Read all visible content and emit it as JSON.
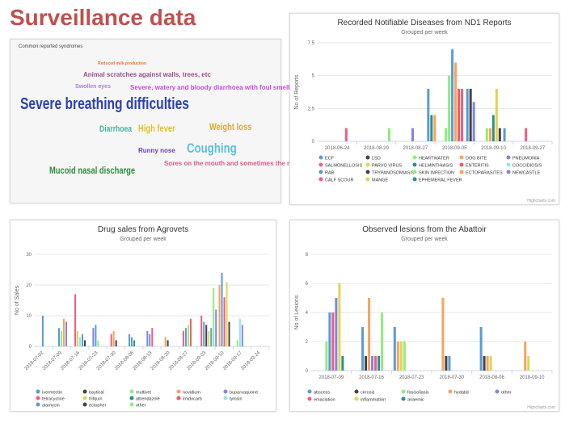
{
  "slide": {
    "title": "Surveillance data"
  },
  "wordcloud": {
    "title": "Common reported syndromes",
    "words": [
      {
        "text": "Reduced milk production",
        "size": 5,
        "color": "#e07b39"
      },
      {
        "text": "Animal scratches against walls, trees, etc",
        "size": 8,
        "color": "#9a4a8a"
      },
      {
        "text": "Swollen eyes",
        "size": 7,
        "color": "#b27bd0"
      },
      {
        "text": "Severe, watery and bloody diarrhoea with foul smell",
        "size": 8,
        "color": "#c44ae0"
      },
      {
        "text": "Severe breathing difficulties",
        "size": 20,
        "color": "#2a3fb5"
      },
      {
        "text": "Diarrhoea",
        "size": 11,
        "color": "#43b7a0"
      },
      {
        "text": "High fever",
        "size": 12,
        "color": "#e0c12a"
      },
      {
        "text": "Weight loss",
        "size": 12,
        "color": "#e0a82a"
      },
      {
        "text": "Runny nose",
        "size": 8,
        "color": "#6a3fb0"
      },
      {
        "text": "Coughing",
        "size": 17,
        "color": "#5bc0de"
      },
      {
        "text": "Sores on the mouth and sometimes the nose",
        "size": 8,
        "color": "#e05a8a"
      },
      {
        "text": "Mucoid nasal discharge",
        "size": 12,
        "color": "#2e8b3a"
      }
    ]
  },
  "charts": {
    "diseases": {
      "title": "Recorded Notifiable Diseases from ND1 Reports",
      "subtitle": "Grouped per week",
      "credit": "Highcharts.com",
      "chart_data": {
        "type": "bar",
        "title": "Recorded Notifiable Diseases from ND1 Reports",
        "ylabel": "No of Reports",
        "ylim": [
          0,
          7.5
        ],
        "yticks": [
          "0",
          "2.5",
          "5",
          "7.5"
        ],
        "xticks": [
          "2018-06-24",
          "2018-08-20",
          "2018-08-27",
          "2018-09-05",
          "2018-09-10",
          "2018-09-27"
        ],
        "groups": [
          {
            "at": 0.5,
            "bars": [
              {
                "name": "CALF SCOUR",
                "value": 1
              }
            ]
          },
          {
            "at": 1.6,
            "bars": [
              {
                "name": "HEARTWATER",
                "value": 1
              }
            ]
          },
          {
            "at": 2.2,
            "bars": [
              {
                "name": "NEWCASTLE",
                "value": 1
              }
            ]
          },
          {
            "at": 2.6,
            "bars": [
              {
                "name": "ECF",
                "value": 4
              },
              {
                "name": "EPHEMERAL FEVER",
                "value": 2
              },
              {
                "name": "DOG BITE",
                "value": 2
              }
            ]
          },
          {
            "at": 3.05,
            "bars": [
              {
                "name": "HEARTWATER",
                "value": 1
              },
              {
                "name": "SKIN INFECTION",
                "value": 5
              },
              {
                "name": "ECF",
                "value": 7
              },
              {
                "name": "DOG BITE",
                "value": 6
              },
              {
                "name": "ENTERITIS",
                "value": 4
              },
              {
                "name": "SALMONELLOSIS",
                "value": 4
              }
            ]
          },
          {
            "at": 3.6,
            "bars": [
              {
                "name": "ECF",
                "value": 4
              },
              {
                "name": "LSD",
                "value": 4
              },
              {
                "name": "NEWCASTLE",
                "value": 3
              }
            ]
          },
          {
            "at": 4.1,
            "bars": [
              {
                "name": "HEARTWATER",
                "value": 1
              },
              {
                "name": "DOG BITE",
                "value": 1
              },
              {
                "name": "HELMINTHIASIS",
                "value": 2
              },
              {
                "name": "MANGE",
                "value": 4
              },
              {
                "name": "LSD",
                "value": 1
              }
            ]
          },
          {
            "at": 4.55,
            "bars": [
              {
                "name": "ECF",
                "value": 1
              }
            ]
          },
          {
            "at": 5.1,
            "bars": [
              {
                "name": "SALMONELLOSIS",
                "value": 1
              }
            ]
          }
        ],
        "legend": [
          {
            "name": "ECF",
            "color": "#5b9bd5"
          },
          {
            "name": "LSD",
            "color": "#434348"
          },
          {
            "name": "HEARTWATER",
            "color": "#90ed7d"
          },
          {
            "name": "DOG BITE",
            "color": "#f7a35c"
          },
          {
            "name": "PNEUMONIA",
            "color": "#8085e9"
          },
          {
            "name": "SALMONELLOSIS",
            "color": "#f15c80"
          },
          {
            "name": "PARVO VIRUS",
            "color": "#e4d354"
          },
          {
            "name": "HELMINTHIASIS",
            "color": "#2b908f"
          },
          {
            "name": "ENTERITIS",
            "color": "#f45b5b"
          },
          {
            "name": "COCCIDIOSIS",
            "color": "#91e8e1"
          },
          {
            "name": "RAB",
            "color": "#5b9bd5"
          },
          {
            "name": "TRYPANOSOMIASIS",
            "color": "#434348"
          },
          {
            "name": "SKIN INFECTION",
            "color": "#90ed7d"
          },
          {
            "name": "ECTOPARASITES",
            "color": "#f7a35c"
          },
          {
            "name": "NEWCASTLE",
            "color": "#8085e9"
          },
          {
            "name": "CALF SCOUR",
            "color": "#f15c80"
          },
          {
            "name": "MANGE",
            "color": "#e4d354"
          },
          {
            "name": "EPHEMERAL FEVER",
            "color": "#2b908f"
          }
        ]
      }
    },
    "drugs": {
      "title": "Drug sales from Agrovets",
      "subtitle": "Grouped per week",
      "credit": "",
      "chart_data": {
        "type": "bar",
        "title": "Drug sales from Agrovets",
        "ylabel": "No of Sales",
        "ylim": [
          0,
          30
        ],
        "yticks": [
          "0",
          "10",
          "20",
          "30"
        ],
        "xticks": [
          "2018-07-02",
          "2018-07-09",
          "2018-07-16",
          "2018-07-23",
          "2018-07-30",
          "2018-08-06",
          "2018-08-13",
          "2018-08-20",
          "2018-08-27",
          "2018-09-03",
          "2018-09-10",
          "2018-09-17",
          "2018-09-24"
        ],
        "groups": [
          {
            "at": 0.2,
            "bars": [
              {
                "name": "ivermectin",
                "value": 10
              }
            ]
          },
          {
            "at": 1.1,
            "bars": [
              {
                "name": "ivermectin",
                "value": 6
              },
              {
                "name": "multivet",
                "value": 5
              },
              {
                "name": "novidium",
                "value": 9
              },
              {
                "name": "buparvaquone",
                "value": 8
              }
            ]
          },
          {
            "at": 2.0,
            "bars": [
              {
                "name": "tetracycline",
                "value": 17
              },
              {
                "name": "trifquin",
                "value": 5
              },
              {
                "name": "tylosin",
                "value": 3
              }
            ]
          },
          {
            "at": 2.4,
            "bars": [
              {
                "name": "alamycin",
                "value": 4
              },
              {
                "name": "ectopher",
                "value": 2
              }
            ]
          },
          {
            "at": 3.0,
            "bars": [
              {
                "name": "buparvaquone",
                "value": 6
              },
              {
                "name": "ivermectin",
                "value": 7
              },
              {
                "name": "multivet",
                "value": 2
              }
            ]
          },
          {
            "at": 4.0,
            "bars": [
              {
                "name": "tetracycline",
                "value": 4
              },
              {
                "name": "novidium",
                "value": 5
              },
              {
                "name": "baytical",
                "value": 2
              }
            ]
          },
          {
            "at": 5.0,
            "bars": [
              {
                "name": "alamycin",
                "value": 4
              },
              {
                "name": "ivermectin",
                "value": 3
              },
              {
                "name": "albendazole",
                "value": 2
              }
            ]
          },
          {
            "at": 6.0,
            "bars": [
              {
                "name": "buparvaquone",
                "value": 5
              },
              {
                "name": "ivermectin",
                "value": 4
              },
              {
                "name": "tetracycline",
                "value": 6
              }
            ]
          },
          {
            "at": 7.0,
            "bars": [
              {
                "name": "novidium",
                "value": 3
              },
              {
                "name": "ectopher",
                "value": 2
              }
            ]
          },
          {
            "at": 8.0,
            "bars": [
              {
                "name": "tetracycline",
                "value": 5
              },
              {
                "name": "ivermectin",
                "value": 6
              },
              {
                "name": "multivet",
                "value": 7
              },
              {
                "name": "imidocarb",
                "value": 9
              }
            ]
          },
          {
            "at": 9.0,
            "bars": [
              {
                "name": "tetracycline",
                "value": 10
              },
              {
                "name": "ivermectin",
                "value": 8
              },
              {
                "name": "baytical",
                "value": 7
              },
              {
                "name": "trifquin",
                "value": 5
              },
              {
                "name": "alamycin",
                "value": 6
              },
              {
                "name": "multivet",
                "value": 19
              },
              {
                "name": "buparvaquone",
                "value": 12
              }
            ]
          },
          {
            "at": 10.0,
            "bars": [
              {
                "name": "novidium",
                "value": 20
              },
              {
                "name": "ivermectin",
                "value": 24
              },
              {
                "name": "tetracycline",
                "value": 16
              },
              {
                "name": "trifquin",
                "value": 21
              },
              {
                "name": "ectopher",
                "value": 8
              }
            ]
          },
          {
            "at": 11.0,
            "bars": [
              {
                "name": "other",
                "value": 2
              },
              {
                "name": "tylosin",
                "value": 9
              },
              {
                "name": "buparvaquone",
                "value": 7
              }
            ]
          }
        ],
        "legend": [
          {
            "name": "ivermectin",
            "color": "#5b9bd5"
          },
          {
            "name": "baytical",
            "color": "#434348"
          },
          {
            "name": "multivet",
            "color": "#90ed7d"
          },
          {
            "name": "novidium",
            "color": "#f7a35c"
          },
          {
            "name": "buparvaquone",
            "color": "#8085e9"
          },
          {
            "name": "tetracycline",
            "color": "#f15c80"
          },
          {
            "name": "trifquin",
            "color": "#e4d354"
          },
          {
            "name": "albendazole",
            "color": "#2b908f"
          },
          {
            "name": "imidocarb",
            "color": "#f45b5b"
          },
          {
            "name": "tylosin",
            "color": "#91e8e1"
          },
          {
            "name": "alamycin",
            "color": "#5b9bd5"
          },
          {
            "name": "ectopher",
            "color": "#434348"
          },
          {
            "name": "other",
            "color": "#90ed7d"
          }
        ]
      }
    },
    "lesions": {
      "title": "Observed lesions from the Abattoir",
      "subtitle": "Grouped per week",
      "credit": "Highcharts.com",
      "chart_data": {
        "type": "bar",
        "title": "Observed lesions from the Abattoir",
        "ylabel": "No of Lesions",
        "ylim": [
          0,
          8
        ],
        "yticks": [
          "0",
          "2",
          "4",
          "6",
          "8"
        ],
        "xticks": [
          "2018-07-09",
          "2018-07-16",
          "2018-07-23",
          "2018-07-30",
          "2018-08-06",
          "2018-09-10"
        ],
        "groups": [
          {
            "at": 0.15,
            "bars": [
              {
                "name": "fascioliasis",
                "value": 2
              },
              {
                "name": "abscess",
                "value": 4
              },
              {
                "name": "emaciation",
                "value": 4
              },
              {
                "name": "other",
                "value": 5
              },
              {
                "name": "inflammation",
                "value": 6
              },
              {
                "name": "anaemic",
                "value": 1
              }
            ]
          },
          {
            "at": 1.05,
            "bars": [
              {
                "name": "abscess",
                "value": 3
              },
              {
                "name": "cirrosis",
                "value": 1
              },
              {
                "name": "hydatid",
                "value": 5
              },
              {
                "name": "other",
                "value": 1
              },
              {
                "name": "emaciation",
                "value": 1
              },
              {
                "name": "anaemic",
                "value": 1
              },
              {
                "name": "fascioliasis",
                "value": 4
              }
            ]
          },
          {
            "at": 1.85,
            "bars": [
              {
                "name": "abscess",
                "value": 3
              },
              {
                "name": "hydatid",
                "value": 2
              },
              {
                "name": "inflammation",
                "value": 2
              },
              {
                "name": "fascioliasis",
                "value": 2
              }
            ]
          },
          {
            "at": 3.05,
            "bars": [
              {
                "name": "hydatid",
                "value": 5
              },
              {
                "name": "cirrosis",
                "value": 1
              },
              {
                "name": "abscess",
                "value": 1
              }
            ]
          },
          {
            "at": 4.0,
            "bars": [
              {
                "name": "abscess",
                "value": 3
              },
              {
                "name": "cirrosis",
                "value": 1
              },
              {
                "name": "hydatid",
                "value": 1
              },
              {
                "name": "inflammation",
                "value": 1
              }
            ]
          },
          {
            "at": 5.1,
            "bars": [
              {
                "name": "hydatid",
                "value": 2
              },
              {
                "name": "inflammation",
                "value": 1
              }
            ]
          }
        ],
        "legend": [
          {
            "name": "abscess",
            "color": "#5b9bd5"
          },
          {
            "name": "cirrosis",
            "color": "#434348"
          },
          {
            "name": "fascioliasis",
            "color": "#90ed7d"
          },
          {
            "name": "hydatid",
            "color": "#f7a35c"
          },
          {
            "name": "other",
            "color": "#8085e9"
          },
          {
            "name": "emaciation",
            "color": "#f15c80"
          },
          {
            "name": "inflammation",
            "color": "#e4d354"
          },
          {
            "name": "anaemic",
            "color": "#2b908f"
          }
        ]
      }
    }
  }
}
